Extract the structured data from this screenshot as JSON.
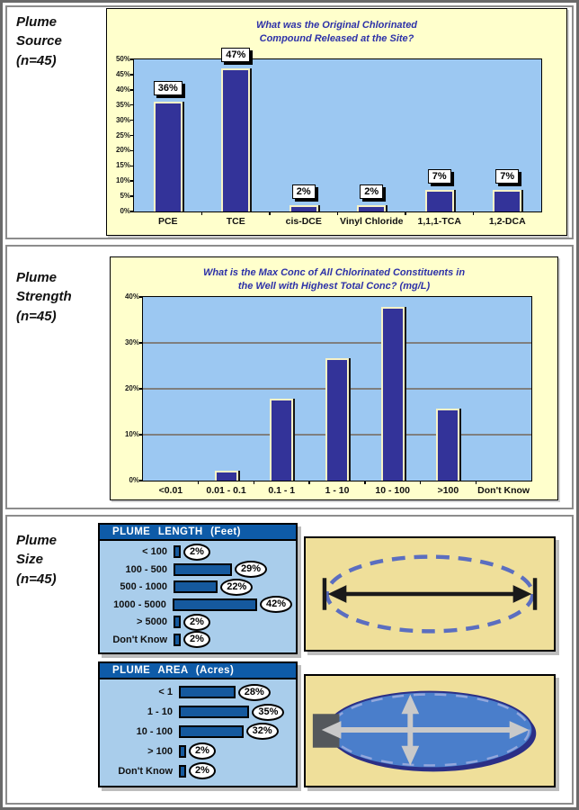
{
  "panels": [
    {
      "label": "Plume\nSource\n(n=45)"
    },
    {
      "label": "Plume\nStrength\n(n=45)"
    },
    {
      "label": "Plume\nSize\n(n=45)"
    }
  ],
  "chart_data": [
    {
      "type": "bar",
      "title": "What was the Original Chlorinated\nCompound Released at the Site?",
      "categories": [
        "PCE",
        "TCE",
        "cis-DCE",
        "Vinyl Chloride",
        "1,1,1-TCA",
        "1,2-DCA"
      ],
      "values": [
        36,
        47,
        2,
        2,
        7,
        7
      ],
      "value_labels": [
        "36%",
        "47%",
        "2%",
        "2%",
        "7%",
        "7%"
      ],
      "ylim": [
        0,
        50
      ],
      "ytick_step": 5,
      "grid": false,
      "ylabel": "",
      "xlabel": ""
    },
    {
      "type": "bar",
      "title": "What is the Max Conc of All Chlorinated Constituents in\nthe Well with Highest Total Conc? (mg/L)",
      "categories": [
        "<0.01",
        "0.01 - 0.1",
        "0.1 - 1",
        "1 - 10",
        "10 - 100",
        ">100",
        "Don't Know"
      ],
      "values": [
        0,
        2.2,
        17.8,
        26.7,
        37.8,
        15.6,
        0
      ],
      "ylim": [
        0,
        40
      ],
      "ytick_step": 10,
      "grid": true,
      "ylabel": "",
      "xlabel": ""
    },
    {
      "type": "bar",
      "orientation": "horizontal",
      "title": "PLUME LENGTH (Feet)",
      "categories": [
        "< 100",
        "100 - 500",
        "500 - 1000",
        "1000 - 5000",
        "> 5000",
        "Don't Know"
      ],
      "values": [
        2,
        29,
        22,
        42,
        2,
        2
      ],
      "value_labels": [
        "2%",
        "29%",
        "22%",
        "42%",
        "2%",
        "2%"
      ]
    },
    {
      "type": "bar",
      "orientation": "horizontal",
      "title": "PLUME AREA (Acres)",
      "categories": [
        "< 1",
        "1 - 10",
        "10 - 100",
        "> 100",
        "Don't Know"
      ],
      "values": [
        28,
        35,
        32,
        2,
        2
      ],
      "value_labels": [
        "28%",
        "35%",
        "32%",
        "2%",
        "2%"
      ]
    }
  ],
  "colors": {
    "outer_border": "#696969",
    "panel_border": "#8C8C8C",
    "chart_bg": "#FFFFCC",
    "plot_bg": "#9CC8F2",
    "bar_navy": "#333399",
    "bar_edge": "#F7F2C6",
    "title_navy": "#2D31A8",
    "gridline": "#7F7F7F",
    "box_bg": "#A9CDEB",
    "box_header": "#0E5BA8",
    "hbar_blue": "#15599E",
    "tan_bg": "#EFDF9A",
    "dash_blue": "#5B6EC0",
    "ellipse_fill": "#4A7ECB",
    "ellipse_dark": "#2B2F86",
    "square_gray": "#54585C",
    "arrow_gray": "#C9C9C9",
    "shadow_gray": "#BDBDBD"
  }
}
